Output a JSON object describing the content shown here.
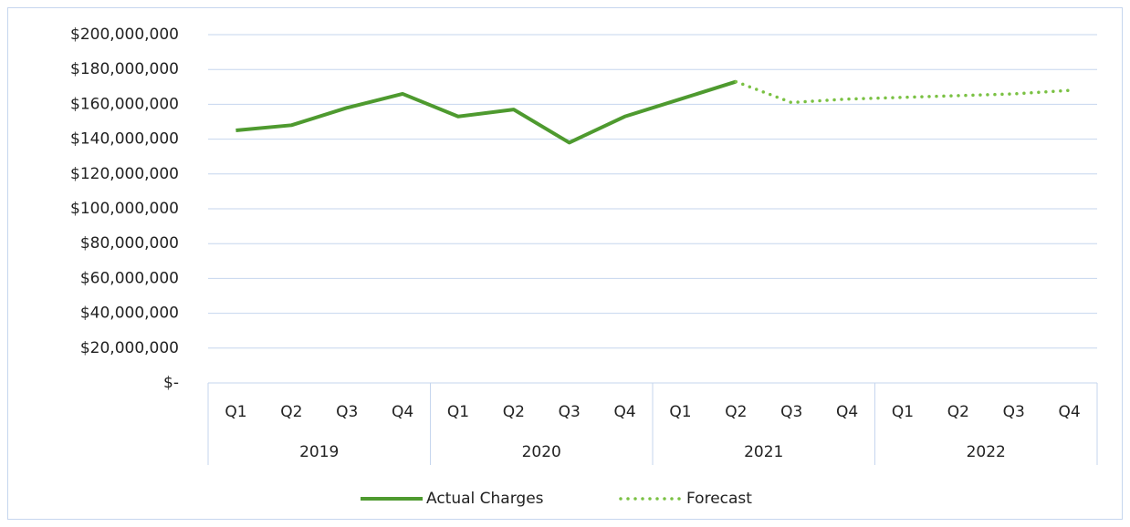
{
  "chart_data": {
    "type": "line",
    "categories": [
      "Q1",
      "Q2",
      "Q3",
      "Q4",
      "Q1",
      "Q2",
      "Q3",
      "Q4",
      "Q1",
      "Q2",
      "Q3",
      "Q4",
      "Q1",
      "Q2",
      "Q3",
      "Q4"
    ],
    "category_groups": [
      "2019",
      "2020",
      "2021",
      "2022"
    ],
    "series": [
      {
        "name": "Actual Charges",
        "color": "#4e9a2f",
        "style": "solid",
        "values": [
          145000000,
          148000000,
          158000000,
          166000000,
          153000000,
          157000000,
          138000000,
          153000000,
          163000000,
          173000000,
          null,
          null,
          null,
          null,
          null,
          null
        ]
      },
      {
        "name": "Forecast",
        "color": "#7ac143",
        "style": "dotted",
        "values": [
          null,
          null,
          null,
          null,
          null,
          null,
          null,
          null,
          null,
          173000000,
          161000000,
          163000000,
          164000000,
          165000000,
          166000000,
          168000000
        ]
      }
    ],
    "ylim": [
      0,
      200000000
    ],
    "yticks": [
      {
        "value": 0,
        "label": "$-"
      },
      {
        "value": 20000000,
        "label": "$20,000,000"
      },
      {
        "value": 40000000,
        "label": "$40,000,000"
      },
      {
        "value": 60000000,
        "label": "$60,000,000"
      },
      {
        "value": 80000000,
        "label": "$80,000,000"
      },
      {
        "value": 100000000,
        "label": "$100,000,000"
      },
      {
        "value": 120000000,
        "label": "$120,000,000"
      },
      {
        "value": 140000000,
        "label": "$140,000,000"
      },
      {
        "value": 160000000,
        "label": "$160,000,000"
      },
      {
        "value": 180000000,
        "label": "$180,000,000"
      },
      {
        "value": 200000000,
        "label": "$200,000,000"
      }
    ],
    "grid": true,
    "legend": "bottom"
  }
}
